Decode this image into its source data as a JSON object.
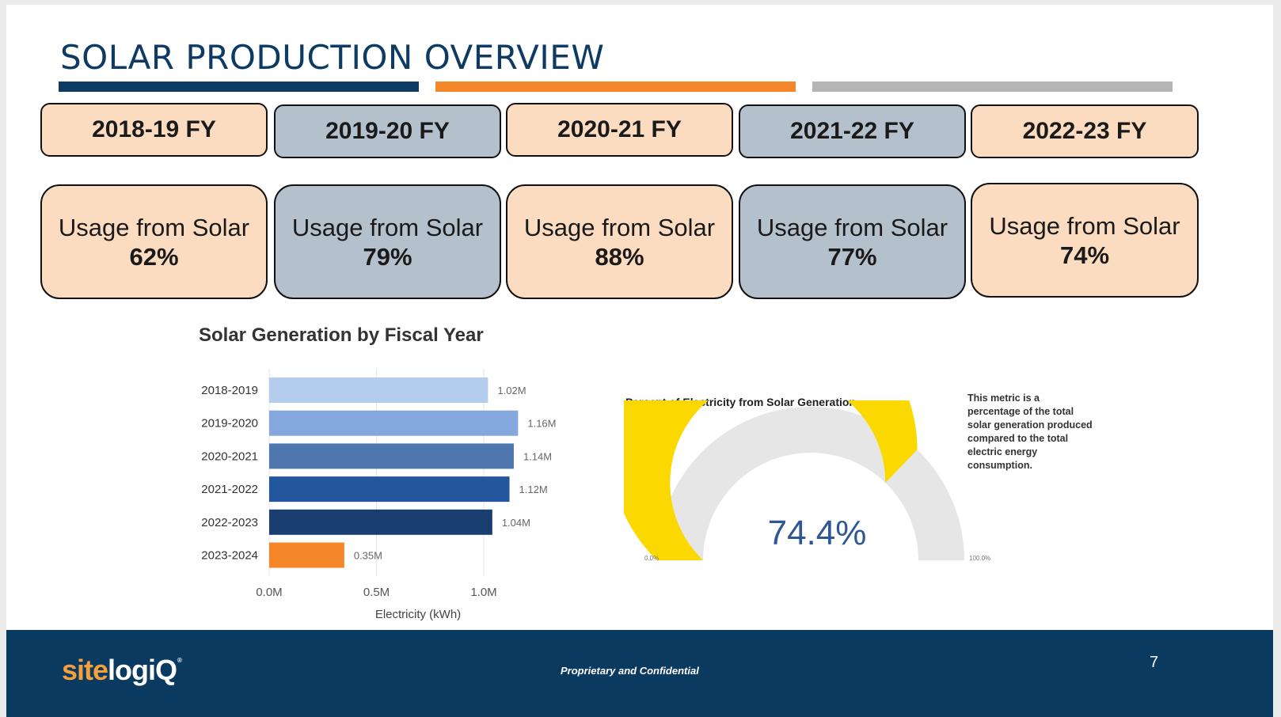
{
  "header": {
    "title": "SOLAR PRODUCTION OVERVIEW"
  },
  "colors": {
    "navy": "#0e3a63",
    "orange": "#f5872a",
    "gray": "#b5b5b5",
    "peach": "#fbdcc0",
    "slate": "#b4c0cc",
    "gauge_fill": "#fad800",
    "gauge_track": "#e6e6e6"
  },
  "fiscal_years": [
    {
      "label": "2018-19 FY",
      "usage_label": "Usage from Solar",
      "usage_value": "62%"
    },
    {
      "label": "2019-20 FY",
      "usage_label": "Usage from Solar",
      "usage_value": "79%"
    },
    {
      "label": "2020-21 FY",
      "usage_label": "Usage from Solar",
      "usage_value": "88%"
    },
    {
      "label": "2021-22 FY",
      "usage_label": "Usage from Solar",
      "usage_value": "77%"
    },
    {
      "label": "2022-23 FY",
      "usage_label": "Usage from Solar",
      "usage_value": "74%"
    }
  ],
  "chart_data": [
    {
      "type": "bar",
      "orientation": "horizontal",
      "title": "Solar Generation by Fiscal Year",
      "xlabel": "Electricity (kWh)",
      "ylabel": "",
      "categories": [
        "2018-2019",
        "2019-2020",
        "2020-2021",
        "2021-2022",
        "2022-2023",
        "2023-2024"
      ],
      "values": [
        1020000,
        1160000,
        1140000,
        1120000,
        1040000,
        350000
      ],
      "data_labels": [
        "1.02M",
        "1.16M",
        "1.14M",
        "1.12M",
        "1.04M",
        "0.35M"
      ],
      "bar_colors": [
        "#b4cdef",
        "#84a8de",
        "#4f76ae",
        "#24569e",
        "#1a3e70",
        "#f5872a"
      ],
      "xlim": [
        0,
        1160000
      ],
      "xticks": [
        0,
        500000,
        1000000
      ],
      "xtick_labels": [
        "0.0M",
        "0.5M",
        "1.0M"
      ],
      "grid": true,
      "legend": "none"
    },
    {
      "type": "gauge",
      "title": "Percent of Electricity from Solar Generation",
      "value": 74.4,
      "value_label": "74.4%",
      "min": 0,
      "max": 100,
      "min_label": "0.0%",
      "max_label": "100.0%",
      "note": "This metric is a percentage of the total solar generation produced compared to the total electric energy consumption."
    }
  ],
  "footer": {
    "logo_part1": "site",
    "logo_part2": "logiQ",
    "confidential": "Proprietary and Confidential",
    "page_number": "7"
  }
}
